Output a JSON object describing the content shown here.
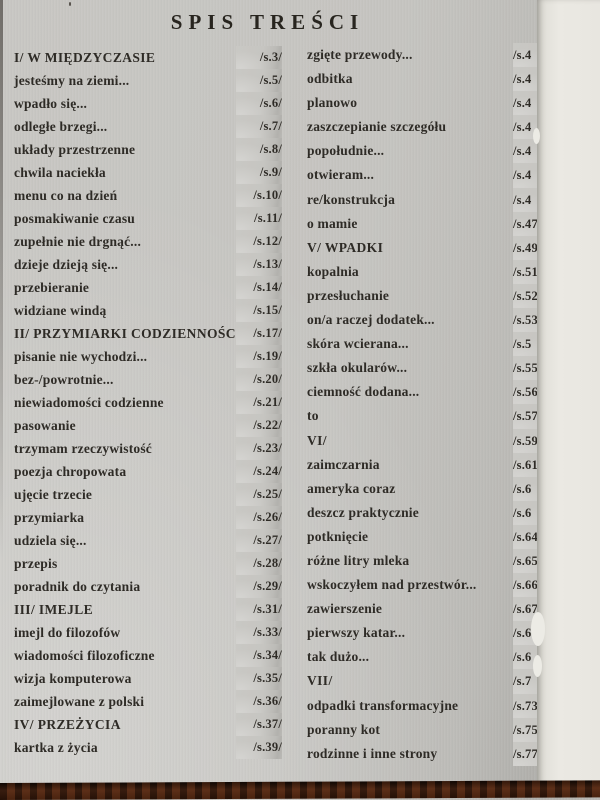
{
  "page_title": "SPIS TREŚCI",
  "left_column": {
    "entries": [
      {
        "label": "I/ W MIĘDZYCZASIE",
        "page": "/s.3/",
        "header": true
      },
      {
        "label": "jesteśmy na ziemi...",
        "page": "/s.5/",
        "header": false
      },
      {
        "label": "wpadło się...",
        "page": "/s.6/",
        "header": false
      },
      {
        "label": "odległe brzegi...",
        "page": "/s.7/",
        "header": false
      },
      {
        "label": "układy przestrzenne",
        "page": "/s.8/",
        "header": false
      },
      {
        "label": "chwila naciekła",
        "page": "/s.9/",
        "header": false
      },
      {
        "label": "menu co na dzień",
        "page": "/s.10/",
        "header": false
      },
      {
        "label": "posmakiwanie czasu",
        "page": "/s.11/",
        "header": false
      },
      {
        "label": "zupełnie nie drgnąć...",
        "page": "/s.12/",
        "header": false
      },
      {
        "label": "dzieje dzieją się...",
        "page": "/s.13/",
        "header": false
      },
      {
        "label": "przebieranie",
        "page": "/s.14/",
        "header": false
      },
      {
        "label": "widziane windą",
        "page": "/s.15/",
        "header": false
      },
      {
        "label": "II/ PRZYMIARKI CODZIENNOŚCI",
        "page": "/s.17/",
        "header": true
      },
      {
        "label": "pisanie nie wychodzi...",
        "page": "/s.19/",
        "header": false
      },
      {
        "label": "bez-/powrotnie...",
        "page": "/s.20/",
        "header": false
      },
      {
        "label": "niewiadomości codzienne",
        "page": "/s.21/",
        "header": false
      },
      {
        "label": "pasowanie",
        "page": "/s.22/",
        "header": false
      },
      {
        "label": "trzymam rzeczywistość",
        "page": "/s.23/",
        "header": false
      },
      {
        "label": "poezja chropowata",
        "page": "/s.24/",
        "header": false
      },
      {
        "label": "ujęcie trzecie",
        "page": "/s.25/",
        "header": false
      },
      {
        "label": "przymiarka",
        "page": "/s.26/",
        "header": false
      },
      {
        "label": "udziela się...",
        "page": "/s.27/",
        "header": false
      },
      {
        "label": "przepis",
        "page": "/s.28/",
        "header": false
      },
      {
        "label": "poradnik do czytania",
        "page": "/s.29/",
        "header": false
      },
      {
        "label": "III/ IMEJLE",
        "page": "/s.31/",
        "header": true
      },
      {
        "label": "imejl do filozofów",
        "page": "/s.33/",
        "header": false
      },
      {
        "label": "wiadomości filozoficzne",
        "page": "/s.34/",
        "header": false
      },
      {
        "label": "wizja komputerowa",
        "page": "/s.35/",
        "header": false
      },
      {
        "label": "zaimejlowane z polski",
        "page": "/s.36/",
        "header": false
      },
      {
        "label": "IV/ PRZEŻYCIA",
        "page": "/s.37/",
        "header": true
      },
      {
        "label": "kartka z życia",
        "page": "/s.39/",
        "header": false
      }
    ]
  },
  "right_column": {
    "entries": [
      {
        "label": "zgięte przewody...",
        "page": "/s.4",
        "header": false
      },
      {
        "label": "odbitka",
        "page": "/s.4",
        "header": false
      },
      {
        "label": "planowo",
        "page": "/s.4",
        "header": false
      },
      {
        "label": "zaszczepianie szczegółu",
        "page": "/s.4",
        "header": false
      },
      {
        "label": "popołudnie...",
        "page": "/s.4",
        "header": false
      },
      {
        "label": "otwieram...",
        "page": "/s.4",
        "header": false
      },
      {
        "label": "re/konstrukcja",
        "page": "/s.4",
        "header": false
      },
      {
        "label": "o mamie",
        "page": "/s.47",
        "header": false
      },
      {
        "label": "V/ WPADKI",
        "page": "/s.49",
        "header": true
      },
      {
        "label": "kopalnia",
        "page": "/s.51",
        "header": false
      },
      {
        "label": "przesłuchanie",
        "page": "/s.52",
        "header": false
      },
      {
        "label": "on/a raczej dodatek...",
        "page": "/s.53",
        "header": false
      },
      {
        "label": "skóra wcierana...",
        "page": "/s.5",
        "header": false
      },
      {
        "label": "szkła okularów...",
        "page": "/s.55",
        "header": false
      },
      {
        "label": "ciemność dodana...",
        "page": "/s.56",
        "header": false
      },
      {
        "label": "to",
        "page": "/s.57",
        "header": false
      },
      {
        "label": "VI/",
        "page": "/s.59",
        "header": true
      },
      {
        "label": "zaimczarnia",
        "page": "/s.61",
        "header": false
      },
      {
        "label": "ameryka coraz",
        "page": "/s.6",
        "header": false
      },
      {
        "label": "deszcz praktycznie",
        "page": "/s.6",
        "header": false
      },
      {
        "label": "potknięcie",
        "page": "/s.64",
        "header": false
      },
      {
        "label": "różne litry mleka",
        "page": "/s.65",
        "header": false
      },
      {
        "label": "wskoczyłem nad przestwór...",
        "page": "/s.66",
        "header": false
      },
      {
        "label": "zawierszenie",
        "page": "/s.67",
        "header": false
      },
      {
        "label": "pierwszy katar...",
        "page": "/s.68",
        "header": false
      },
      {
        "label": "tak dużo...",
        "page": "/s.6",
        "header": false
      },
      {
        "label": "VII/",
        "page": "/s.7",
        "header": true
      },
      {
        "label": "odpadki transformacyjne",
        "page": "/s.73",
        "header": false
      },
      {
        "label": "poranny kot",
        "page": "/s.75",
        "header": false
      },
      {
        "label": "rodzinne i inne strony",
        "page": "/s.77/",
        "header": false
      }
    ]
  },
  "colors": {
    "paper": "#c6c5c1",
    "fore_edge": "#ebe9e3",
    "ink": "#2e2b26",
    "wood_table": "#4c2715"
  }
}
